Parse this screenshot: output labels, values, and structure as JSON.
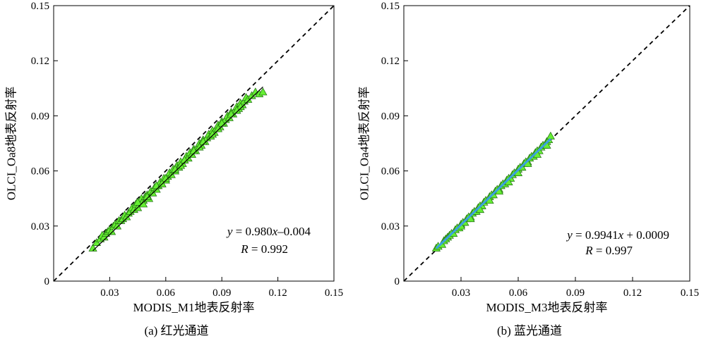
{
  "chart_data": [
    {
      "type": "scatter",
      "xlabel": "MODIS_M1地表反射率",
      "ylabel": "OLCI_Oa8地表反射率",
      "xlim": [
        0,
        0.15
      ],
      "ylim": [
        0,
        0.15
      ],
      "xticks": [
        "0.03",
        "0.06",
        "0.09",
        "0.12",
        "0.15"
      ],
      "yticks": [
        "0",
        "0.03",
        "0.06",
        "0.09",
        "0.12",
        "0.15"
      ],
      "equation": {
        "y": "y",
        "eq": " = 0.980",
        "x": "x",
        "rest": "–0.004"
      },
      "r_text": {
        "R": "R",
        "rest": " = 0.992"
      },
      "caption": "(a) 红光通道",
      "fit": {
        "slope": 0.98,
        "intercept": -0.004,
        "x_range": [
          0.021,
          0.112
        ]
      },
      "marker_color": "#66ee33",
      "fit_color": "#000000",
      "x": [
        0.021,
        0.023,
        0.025,
        0.026,
        0.027,
        0.028,
        0.029,
        0.03,
        0.031,
        0.032,
        0.033,
        0.034,
        0.035,
        0.036,
        0.037,
        0.038,
        0.039,
        0.04,
        0.041,
        0.042,
        0.043,
        0.044,
        0.045,
        0.046,
        0.047,
        0.048,
        0.049,
        0.05,
        0.051,
        0.052,
        0.053,
        0.054,
        0.055,
        0.056,
        0.057,
        0.058,
        0.059,
        0.06,
        0.061,
        0.062,
        0.063,
        0.064,
        0.065,
        0.066,
        0.067,
        0.068,
        0.069,
        0.07,
        0.071,
        0.072,
        0.073,
        0.074,
        0.075,
        0.076,
        0.077,
        0.078,
        0.079,
        0.08,
        0.081,
        0.082,
        0.083,
        0.084,
        0.085,
        0.086,
        0.087,
        0.088,
        0.089,
        0.09,
        0.091,
        0.092,
        0.093,
        0.094,
        0.095,
        0.096,
        0.097,
        0.098,
        0.099,
        0.1,
        0.101,
        0.102,
        0.103,
        0.104,
        0.106,
        0.108,
        0.11,
        0.112,
        0.045,
        0.05,
        0.055,
        0.06,
        0.065,
        0.07,
        0.075,
        0.08,
        0.085,
        0.09,
        0.095,
        0.1,
        0.048,
        0.058,
        0.068,
        0.078,
        0.088,
        0.098
      ],
      "y": [
        0.018,
        0.021,
        0.023,
        0.025,
        0.024,
        0.026,
        0.027,
        0.028,
        0.027,
        0.03,
        0.031,
        0.03,
        0.033,
        0.033,
        0.034,
        0.036,
        0.035,
        0.037,
        0.038,
        0.04,
        0.039,
        0.042,
        0.04,
        0.043,
        0.045,
        0.044,
        0.046,
        0.047,
        0.045,
        0.049,
        0.048,
        0.051,
        0.05,
        0.052,
        0.054,
        0.053,
        0.056,
        0.055,
        0.057,
        0.059,
        0.058,
        0.061,
        0.06,
        0.063,
        0.062,
        0.065,
        0.064,
        0.066,
        0.068,
        0.067,
        0.07,
        0.069,
        0.072,
        0.071,
        0.073,
        0.075,
        0.074,
        0.077,
        0.076,
        0.078,
        0.08,
        0.079,
        0.082,
        0.081,
        0.083,
        0.085,
        0.084,
        0.087,
        0.086,
        0.088,
        0.09,
        0.089,
        0.092,
        0.091,
        0.093,
        0.095,
        0.094,
        0.097,
        0.096,
        0.098,
        0.1,
        0.099,
        0.101,
        0.103,
        0.102,
        0.103,
        0.043,
        0.046,
        0.052,
        0.056,
        0.061,
        0.066,
        0.071,
        0.076,
        0.08,
        0.086,
        0.091,
        0.095,
        0.042,
        0.053,
        0.063,
        0.073,
        0.083,
        0.093
      ]
    },
    {
      "type": "scatter",
      "xlabel": "MODIS_M3地表反射率",
      "ylabel": "OLCI_Oa4地表反射率",
      "xlim": [
        0,
        0.15
      ],
      "ylim": [
        0,
        0.15
      ],
      "xticks": [
        "0.03",
        "0.06",
        "0.09",
        "0.12",
        "0.15"
      ],
      "yticks": [
        "0",
        "0.03",
        "0.06",
        "0.09",
        "0.12",
        "0.15"
      ],
      "equation": {
        "y": "y",
        "eq": " = 0.9941",
        "x": "x",
        "rest": " + 0.0009"
      },
      "r_text": {
        "R": "R",
        "rest": " = 0.997"
      },
      "caption": "(b) 蓝光通道",
      "fit": {
        "slope": 0.9941,
        "intercept": 0.0009,
        "x_range": [
          0.017,
          0.077
        ]
      },
      "marker_color": "#66ee33",
      "fit_color": "#3ba0e0",
      "x": [
        0.017,
        0.018,
        0.02,
        0.021,
        0.022,
        0.023,
        0.024,
        0.025,
        0.026,
        0.027,
        0.028,
        0.029,
        0.03,
        0.031,
        0.032,
        0.033,
        0.034,
        0.035,
        0.036,
        0.037,
        0.038,
        0.039,
        0.04,
        0.041,
        0.042,
        0.043,
        0.044,
        0.045,
        0.046,
        0.047,
        0.048,
        0.049,
        0.05,
        0.051,
        0.052,
        0.053,
        0.054,
        0.055,
        0.056,
        0.057,
        0.058,
        0.059,
        0.06,
        0.061,
        0.062,
        0.063,
        0.064,
        0.065,
        0.066,
        0.067,
        0.068,
        0.069,
        0.07,
        0.071,
        0.072,
        0.073,
        0.074,
        0.075,
        0.076,
        0.077,
        0.03,
        0.035,
        0.04,
        0.045,
        0.05,
        0.055,
        0.06,
        0.065,
        0.07,
        0.075
      ],
      "y": [
        0.018,
        0.019,
        0.02,
        0.022,
        0.023,
        0.024,
        0.025,
        0.026,
        0.026,
        0.028,
        0.029,
        0.029,
        0.031,
        0.032,
        0.032,
        0.034,
        0.035,
        0.035,
        0.037,
        0.038,
        0.038,
        0.04,
        0.041,
        0.041,
        0.043,
        0.044,
        0.044,
        0.046,
        0.047,
        0.047,
        0.049,
        0.05,
        0.05,
        0.052,
        0.053,
        0.053,
        0.055,
        0.056,
        0.056,
        0.058,
        0.059,
        0.059,
        0.061,
        0.062,
        0.062,
        0.064,
        0.065,
        0.065,
        0.067,
        0.068,
        0.068,
        0.07,
        0.071,
        0.071,
        0.073,
        0.074,
        0.074,
        0.076,
        0.077,
        0.079,
        0.03,
        0.034,
        0.039,
        0.044,
        0.049,
        0.054,
        0.059,
        0.064,
        0.069,
        0.074
      ]
    }
  ]
}
